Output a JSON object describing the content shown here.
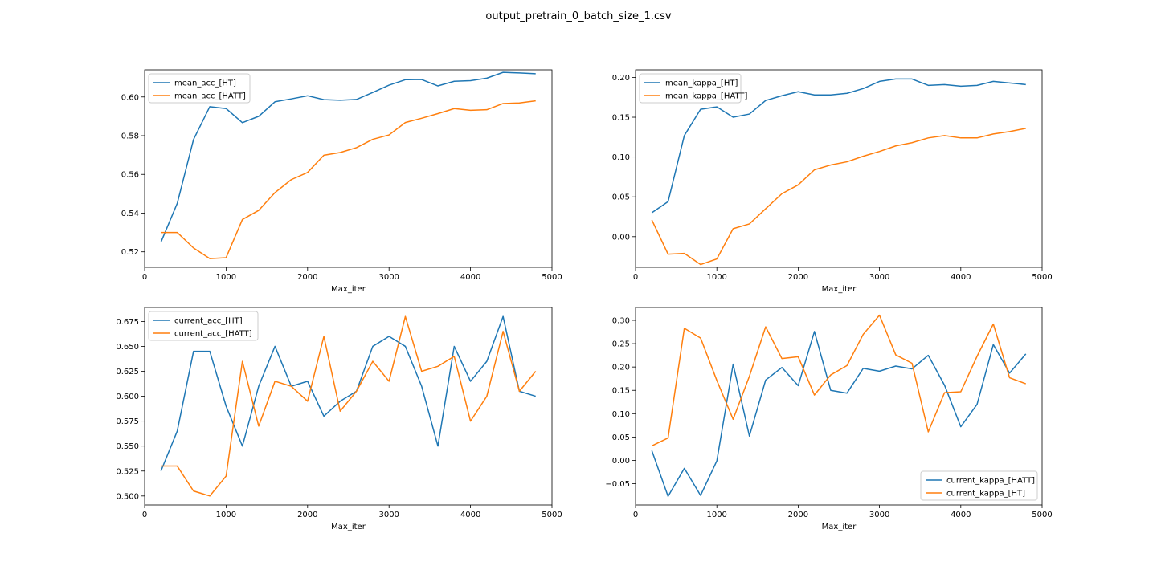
{
  "figure": {
    "title": "output_pretrain_0_batch_size_1.csv"
  },
  "chart_data": [
    {
      "type": "line",
      "xlabel": "Max_iter",
      "ylabel": "",
      "xlim": [
        0,
        5000
      ],
      "ylim": [
        0.512,
        0.614
      ],
      "xticks": [
        0,
        1000,
        2000,
        3000,
        4000,
        5000
      ],
      "yticks": [
        0.52,
        0.54,
        0.56,
        0.58,
        0.6
      ],
      "ytick_labels": [
        "0.52",
        "0.54",
        "0.56",
        "0.58",
        "0.60"
      ],
      "grid": false,
      "legend": "upper-left",
      "x": [
        200,
        400,
        600,
        800,
        1000,
        1200,
        1400,
        1600,
        1800,
        2000,
        2200,
        2400,
        2600,
        2800,
        3000,
        3200,
        3400,
        3600,
        3800,
        4000,
        4200,
        4400,
        4600,
        4800
      ],
      "series": [
        {
          "name": "mean_acc_[HT]",
          "color": "#1f77b4",
          "values": [
            0.525,
            0.545,
            0.578,
            0.595,
            0.594,
            0.5867,
            0.59,
            0.5975,
            0.599,
            0.6006,
            0.5986,
            0.5983,
            0.5987,
            0.6023,
            0.6061,
            0.6089,
            0.609,
            0.6057,
            0.6081,
            0.6084,
            0.6097,
            0.6127,
            0.6124,
            0.612
          ]
        },
        {
          "name": "mean_acc_[HATT]",
          "color": "#ff7f0e",
          "values": [
            0.53,
            0.53,
            0.522,
            0.5165,
            0.517,
            0.5367,
            0.5414,
            0.5506,
            0.5573,
            0.561,
            0.5699,
            0.5713,
            0.5738,
            0.5781,
            0.5804,
            0.5868,
            0.589,
            0.5914,
            0.594,
            0.5931,
            0.5934,
            0.5966,
            0.5969,
            0.598
          ]
        }
      ]
    },
    {
      "type": "line",
      "xlabel": "Max_iter",
      "ylabel": "",
      "xlim": [
        0,
        5000
      ],
      "ylim": [
        -0.0385,
        0.2095
      ],
      "xticks": [
        0,
        1000,
        2000,
        3000,
        4000,
        5000
      ],
      "yticks": [
        0.0,
        0.05,
        0.1,
        0.15,
        0.2
      ],
      "ytick_labels": [
        "0.00",
        "0.05",
        "0.10",
        "0.15",
        "0.20"
      ],
      "grid": false,
      "legend": "upper-left",
      "x": [
        200,
        400,
        600,
        800,
        1000,
        1200,
        1400,
        1600,
        1800,
        2000,
        2200,
        2400,
        2600,
        2800,
        3000,
        3200,
        3400,
        3600,
        3800,
        4000,
        4200,
        4400,
        4600,
        4800
      ],
      "series": [
        {
          "name": "mean_kappa_[HT]",
          "color": "#1f77b4",
          "values": [
            0.03,
            0.044,
            0.127,
            0.16,
            0.163,
            0.15,
            0.154,
            0.171,
            0.177,
            0.182,
            0.178,
            0.178,
            0.18,
            0.186,
            0.195,
            0.198,
            0.198,
            0.19,
            0.191,
            0.189,
            0.19,
            0.195,
            0.193,
            0.191
          ]
        },
        {
          "name": "mean_kappa_[HATT]",
          "color": "#ff7f0e",
          "values": [
            0.021,
            -0.022,
            -0.021,
            -0.035,
            -0.028,
            0.01,
            0.016,
            0.035,
            0.054,
            0.065,
            0.084,
            0.09,
            0.094,
            0.101,
            0.107,
            0.114,
            0.118,
            0.124,
            0.127,
            0.124,
            0.124,
            0.129,
            0.132,
            0.136
          ]
        }
      ]
    },
    {
      "type": "line",
      "xlabel": "Max_iter",
      "ylabel": "",
      "xlim": [
        0,
        5000
      ],
      "ylim": [
        0.491,
        0.689
      ],
      "xticks": [
        0,
        1000,
        2000,
        3000,
        4000,
        5000
      ],
      "yticks": [
        0.5,
        0.525,
        0.55,
        0.575,
        0.6,
        0.625,
        0.65,
        0.675
      ],
      "ytick_labels": [
        "0.500",
        "0.525",
        "0.550",
        "0.575",
        "0.600",
        "0.625",
        "0.650",
        "0.675"
      ],
      "grid": false,
      "legend": "upper-left",
      "x": [
        200,
        400,
        600,
        800,
        1000,
        1200,
        1400,
        1600,
        1800,
        2000,
        2200,
        2400,
        2600,
        2800,
        3000,
        3200,
        3400,
        3600,
        3800,
        4000,
        4200,
        4400,
        4600,
        4800
      ],
      "series": [
        {
          "name": "current_acc_[HT]",
          "color": "#1f77b4",
          "values": [
            0.525,
            0.565,
            0.645,
            0.645,
            0.59,
            0.55,
            0.61,
            0.65,
            0.61,
            0.615,
            0.58,
            0.595,
            0.605,
            0.65,
            0.66,
            0.65,
            0.61,
            0.55,
            0.65,
            0.615,
            0.635,
            0.68,
            0.605,
            0.6
          ]
        },
        {
          "name": "current_acc_[HATT]",
          "color": "#ff7f0e",
          "values": [
            0.53,
            0.53,
            0.505,
            0.5,
            0.52,
            0.635,
            0.57,
            0.615,
            0.61,
            0.595,
            0.66,
            0.585,
            0.605,
            0.635,
            0.615,
            0.68,
            0.625,
            0.63,
            0.64,
            0.575,
            0.6,
            0.665,
            0.605,
            0.625
          ]
        }
      ]
    },
    {
      "type": "line",
      "xlabel": "Max_iter",
      "ylabel": "",
      "xlim": [
        0,
        5000
      ],
      "ylim": [
        -0.0955,
        0.3275
      ],
      "xticks": [
        0,
        1000,
        2000,
        3000,
        4000,
        5000
      ],
      "yticks": [
        -0.05,
        0.0,
        0.05,
        0.1,
        0.15,
        0.2,
        0.25,
        0.3
      ],
      "ytick_labels": [
        "−0.05",
        "0.00",
        "0.05",
        "0.10",
        "0.15",
        "0.20",
        "0.25",
        "0.30"
      ],
      "grid": false,
      "legend": "lower-right",
      "x": [
        200,
        400,
        600,
        800,
        1000,
        1200,
        1400,
        1600,
        1800,
        2000,
        2200,
        2400,
        2600,
        2800,
        3000,
        3200,
        3400,
        3600,
        3800,
        4000,
        4200,
        4400,
        4600,
        4800
      ],
      "series": [
        {
          "name": "current_kappa_[HATT]",
          "color": "#1f77b4",
          "values": [
            0.021,
            -0.077,
            -0.017,
            -0.075,
            -0.001,
            0.206,
            0.052,
            0.172,
            0.199,
            0.16,
            0.276,
            0.15,
            0.144,
            0.197,
            0.191,
            0.202,
            0.196,
            0.225,
            0.161,
            0.072,
            0.12,
            0.248,
            0.187,
            0.228
          ]
        },
        {
          "name": "current_kappa_[HT]",
          "color": "#ff7f0e",
          "values": [
            0.031,
            0.048,
            0.283,
            0.262,
            0.171,
            0.088,
            0.18,
            0.286,
            0.218,
            0.222,
            0.14,
            0.183,
            0.203,
            0.27,
            0.311,
            0.226,
            0.208,
            0.061,
            0.145,
            0.147,
            0.223,
            0.292,
            0.177,
            0.164
          ]
        }
      ]
    }
  ]
}
